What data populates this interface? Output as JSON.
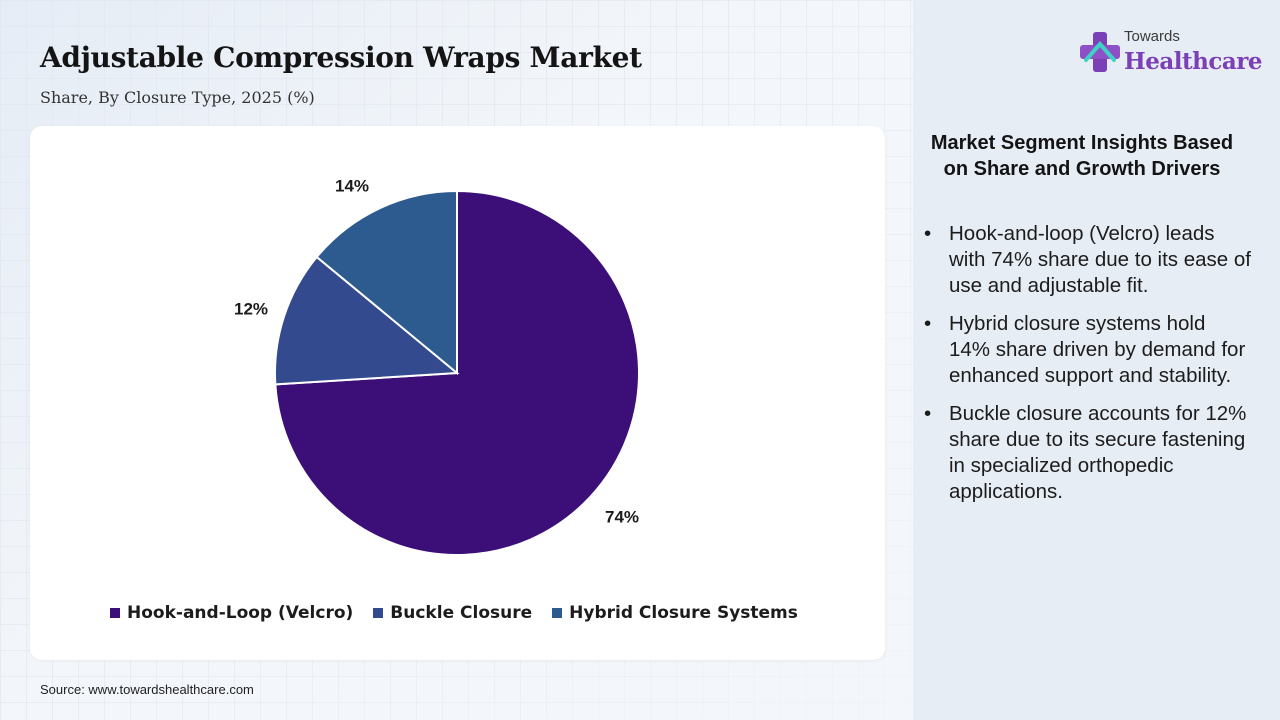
{
  "header": {
    "title": "Adjustable Compression Wraps Market",
    "subtitle": "Share, By Closure Type, 2025 (%)"
  },
  "chart_data": {
    "type": "pie",
    "categories": [
      "Hook-and-Loop (Velcro)",
      "Buckle Closure",
      "Hybrid Closure Systems"
    ],
    "values": [
      74,
      12,
      14
    ],
    "labels": [
      "74%",
      "12%",
      "14%"
    ],
    "colors": [
      "#3b0f77",
      "#344a8e",
      "#2e5b8f"
    ],
    "start_angle_deg": 0,
    "direction": "clockwise",
    "legend_position": "bottom"
  },
  "legend": {
    "items": [
      {
        "label": "Hook-and-Loop (Velcro)",
        "color": "#3b0f77"
      },
      {
        "label": "Buckle Closure",
        "color": "#344a8e"
      },
      {
        "label": "Hybrid Closure Systems",
        "color": "#2e5b8f"
      }
    ]
  },
  "source": "Source: www.towardshealthcare.com",
  "logo": {
    "top": "Towards",
    "main": "Healthcare",
    "icon": "medical-cross-icon",
    "brand_color": "#7b3fb6"
  },
  "insights": {
    "title": "Market Segment Insights Based on Share and Growth Drivers",
    "items": [
      "Hook-and-loop (Velcro) leads with 74% share due to its ease of use and adjustable fit.",
      "Hybrid closure systems hold 14% share driven by demand for enhanced support and stability.",
      "Buckle closure accounts for 12% share due to its secure fastening in specialized orthopedic applications."
    ]
  }
}
